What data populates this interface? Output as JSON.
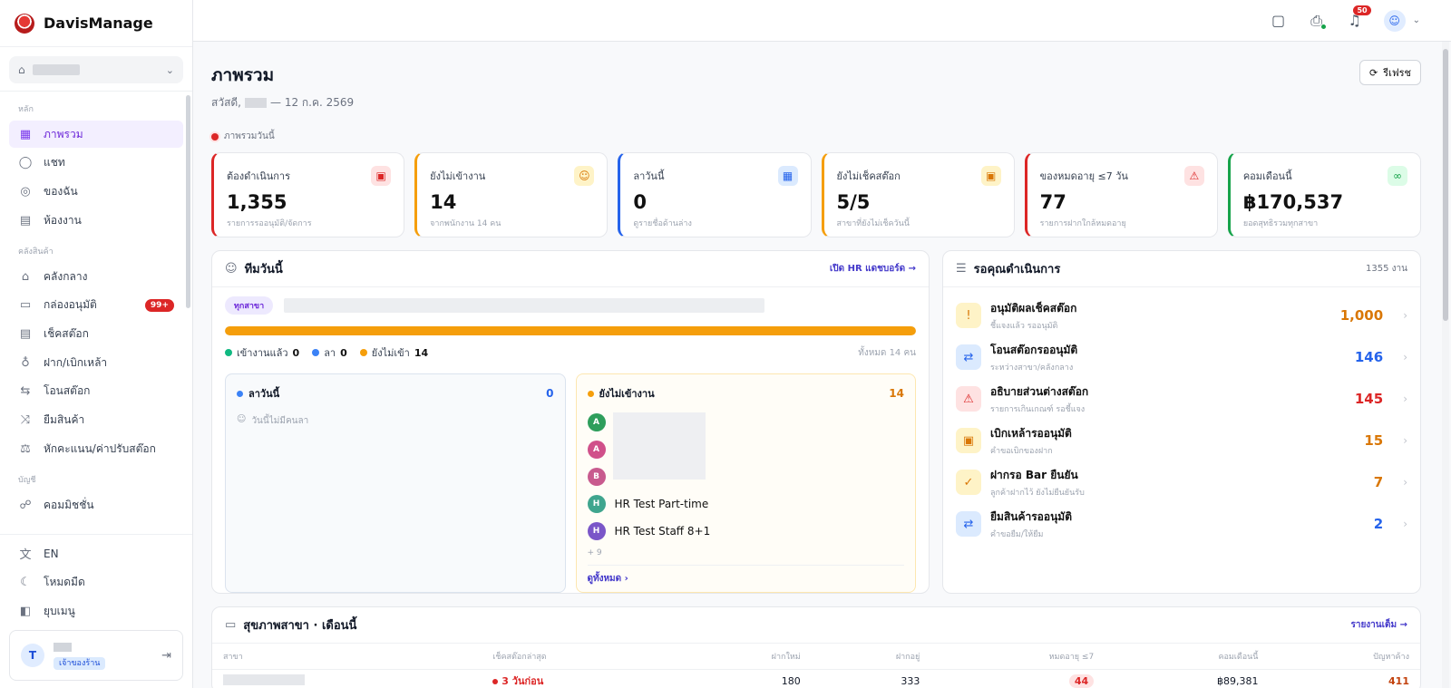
{
  "brand": {
    "name": "DavisManage"
  },
  "sidebar": {
    "sections": {
      "main": "หลัก",
      "inventory": "คลังสินค้า",
      "accounting": "บัญชี"
    },
    "items": [
      {
        "label": "ภาพรวม",
        "icon": "grid-icon"
      },
      {
        "label": "แชท",
        "icon": "chat-icon"
      },
      {
        "label": "ของฉัน",
        "icon": "user-circle-icon"
      },
      {
        "label": "ห้องงาน",
        "icon": "clipboard-icon"
      },
      {
        "label": "คลังกลาง",
        "icon": "warehouse-icon"
      },
      {
        "label": "กล่องอนุมัติ",
        "icon": "inbox-icon",
        "badge": "99+"
      },
      {
        "label": "เช็คสต๊อก",
        "icon": "clipboard-check-icon"
      },
      {
        "label": "ฝาก/เบิกเหล้า",
        "icon": "bottle-icon"
      },
      {
        "label": "โอนสต๊อก",
        "icon": "transfer-icon"
      },
      {
        "label": "ยืมสินค้า",
        "icon": "shuffle-icon"
      },
      {
        "label": "หักคะแนน/ค่าปรับสต๊อก",
        "icon": "scale-icon"
      },
      {
        "label": "คอมมิชชั่น",
        "icon": "handshake-icon"
      }
    ],
    "bottom": [
      {
        "label": "EN",
        "icon": "translate-icon"
      },
      {
        "label": "โหมดมืด",
        "icon": "moon-icon"
      },
      {
        "label": "ยุบเมนู",
        "icon": "collapse-icon"
      }
    ],
    "user": {
      "initial": "T",
      "role": "เจ้าของร้าน"
    }
  },
  "topbar": {
    "notifications": "50"
  },
  "page": {
    "title": "ภาพรวม",
    "greeting_prefix": "สวัสดี,",
    "greeting_date": "— 12 ก.ค. 2569",
    "refresh": "รีเฟรช",
    "today_label": "ภาพรวมวันนี้"
  },
  "stats": [
    {
      "label": "ต้องดำเนินการ",
      "value": "1,355",
      "sub": "รายการรออนุมัติ/จัดการ",
      "color": "#dc2626"
    },
    {
      "label": "ยังไม่เข้างาน",
      "value": "14",
      "sub": "จากพนักงาน 14 คน",
      "color": "#f59e0b"
    },
    {
      "label": "ลาวันนี้",
      "value": "0",
      "sub": "ดูรายชื่อด้านล่าง",
      "color": "#2563eb"
    },
    {
      "label": "ยังไม่เช็คสต๊อก",
      "value": "5/5",
      "sub": "สาขาที่ยังไม่เช็ควันนี้",
      "color": "#f59e0b"
    },
    {
      "label": "ของหมดอายุ ≤7 วัน",
      "value": "77",
      "sub": "รายการฝากใกล้หมดอายุ",
      "color": "#dc2626"
    },
    {
      "label": "คอมเดือนนี้",
      "value": "฿170,537",
      "sub": "ยอดสุทธิรวมทุกสาขา",
      "color": "#16a34a"
    }
  ],
  "team": {
    "title": "ทีมวันนี้",
    "link": "เปิด HR แดชบอร์ด →",
    "chip": "ทุกสาขา",
    "progress_fraction": 1.0,
    "legend": {
      "checked_in_label": "เข้างานแล้ว",
      "checked_in": "0",
      "leave_label": "ลา",
      "leave": "0",
      "absent_label": "ยังไม่เข้า",
      "absent": "14",
      "total": "ทั้งหมด 14 คน"
    },
    "leave_panel": {
      "title": "ลาวันนี้",
      "count": "0",
      "empty": "วันนี้ไม่มีคนลา"
    },
    "absent_panel": {
      "title": "ยังไม่เข้างาน",
      "count": "14",
      "people": [
        {
          "initial": "A",
          "name": "",
          "color": "#2e9e5b"
        },
        {
          "initial": "A",
          "name": "",
          "color": "#d0508a"
        },
        {
          "initial": "B",
          "name": "",
          "color": "#c85a8e"
        },
        {
          "initial": "H",
          "name": "HR Test Part-time",
          "color": "#3fa58e"
        },
        {
          "initial": "H",
          "name": "HR Test Staff 8+1",
          "color": "#7a56c8"
        }
      ],
      "more": "+ 9",
      "view_all": "ดูทั้งหมด"
    }
  },
  "pending": {
    "title": "รอคุณดำเนินการ",
    "meta": "1355 งาน",
    "items": [
      {
        "title": "อนุมัติผลเช็คสต๊อก",
        "sub": "ชี้แจงแล้ว รออนุมัติ",
        "count": "1,000",
        "color": "#d97706",
        "bg": "#fef3c7",
        "icon": "!"
      },
      {
        "title": "โอนสต๊อกรออนุมัติ",
        "sub": "ระหว่างสาขา/คลังกลาง",
        "count": "146",
        "color": "#2563eb",
        "bg": "#dbeafe",
        "icon": "⇄"
      },
      {
        "title": "อธิบายส่วนต่างสต๊อก",
        "sub": "รายการเกินเกณฑ์ รอชี้แจง",
        "count": "145",
        "color": "#dc2626",
        "bg": "#fee2e2",
        "icon": "⚠"
      },
      {
        "title": "เบิกเหล้ารออนุมัติ",
        "sub": "คำขอเบิกของฝาก",
        "count": "15",
        "color": "#d97706",
        "bg": "#fef3c7",
        "icon": "▣"
      },
      {
        "title": "ฝากรอ Bar ยืนยัน",
        "sub": "ลูกค้าฝากไว้ ยังไม่ยืนยันรับ",
        "count": "7",
        "color": "#d97706",
        "bg": "#fef3c7",
        "icon": "✓"
      },
      {
        "title": "ยืมสินค้ารออนุมัติ",
        "sub": "คำขอยืม/ให้ยืม",
        "count": "2",
        "color": "#2563eb",
        "bg": "#dbeafe",
        "icon": "⇄"
      }
    ]
  },
  "branch": {
    "title": "สุขภาพสาขา · เดือนนี้",
    "link": "รายงานเต็ม →",
    "columns": [
      "สาขา",
      "เช็คสต๊อกล่าสุด",
      "ฝากใหม่",
      "ฝากอยู่",
      "หมดอายุ ≤7",
      "คอมเดือนนี้",
      "ปัญหาค้าง"
    ],
    "rows": [
      {
        "last_check": "3 วันก่อน",
        "new": "180",
        "stored": "333",
        "expiring": "44",
        "commission": "฿89,381",
        "issues": "411"
      }
    ]
  }
}
